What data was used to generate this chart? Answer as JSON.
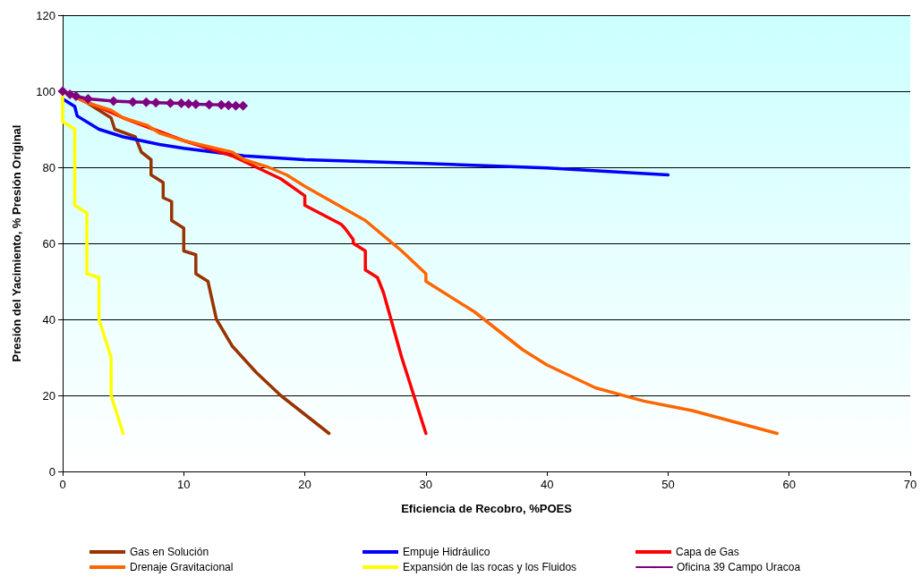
{
  "chart_data": {
    "type": "line",
    "xlabel": "Eficiencia de Recobro, %POES",
    "ylabel": "Presión del Yacimiento, % Presión Original",
    "xlim": [
      0,
      70
    ],
    "xticks": [
      0,
      10,
      20,
      30,
      40,
      50,
      60,
      70
    ],
    "ylim": [
      0,
      120
    ],
    "yticks": [
      0,
      20,
      40,
      60,
      80,
      100,
      120
    ],
    "grid": "y",
    "legend": "bottom",
    "line_style": "solid",
    "series": [
      {
        "name": "Gas en Solución",
        "color": "#993300",
        "marker": "none",
        "x": [
          0,
          2,
          4,
          4.3,
          6,
          6.5,
          7.3,
          7.3,
          8.3,
          8.3,
          9,
          9,
          10,
          10,
          11,
          11,
          12,
          12.7,
          14,
          16,
          18,
          20,
          22
        ],
        "values": [
          100,
          97,
          93,
          90,
          88,
          84,
          82,
          78,
          76,
          72,
          71,
          66,
          64,
          58,
          57,
          52,
          50,
          40,
          33,
          26,
          20,
          15,
          10
        ]
      },
      {
        "name": "Empuje Hidráulico",
        "color": "#0000ff",
        "marker": "none",
        "x": [
          0,
          1,
          1.2,
          3,
          5,
          8,
          10,
          15,
          20,
          30,
          40,
          50
        ],
        "values": [
          98,
          96,
          93.5,
          90,
          88,
          86,
          85,
          83,
          82,
          81,
          79.8,
          78
        ]
      },
      {
        "name": "Capa de Gas",
        "color": "#ff0000",
        "marker": "none",
        "x": [
          0,
          5,
          10,
          14,
          16,
          18,
          20,
          20,
          23,
          23.3,
          24,
          24,
          25,
          25,
          26,
          26.5,
          28,
          30
        ],
        "values": [
          100,
          93,
          87,
          83,
          80,
          77,
          72.5,
          70,
          65,
          64,
          61,
          60,
          58,
          53,
          51,
          47,
          30,
          10
        ]
      },
      {
        "name": "Drenaje Gravitacional",
        "color": "#ff6600",
        "marker": "none",
        "x": [
          0,
          2,
          4,
          5,
          7,
          8,
          10,
          12,
          14,
          15,
          17,
          18.5,
          20,
          25,
          28,
          29,
          30,
          30,
          34,
          36,
          38,
          40,
          44,
          48,
          52,
          59
        ],
        "values": [
          100,
          97,
          95,
          93,
          91,
          89,
          87,
          85.5,
          84,
          82,
          80,
          78,
          75,
          66,
          58,
          55,
          52,
          50,
          42,
          37,
          32,
          28,
          22,
          18.5,
          16,
          10
        ]
      },
      {
        "name": "Expansión de las rocas y los Fluidos",
        "color": "#ffff00",
        "marker": "none",
        "x": [
          0,
          0,
          1,
          1,
          2,
          2,
          3,
          3,
          4,
          4,
          5
        ],
        "values": [
          100,
          92,
          90,
          70,
          68,
          52,
          51,
          40,
          30,
          20,
          10
        ]
      },
      {
        "name": "Oficina 39 Campo Uracoa",
        "color": "#800080",
        "marker": "diamond",
        "x": [
          0,
          0.6,
          1.1,
          2.1,
          4.2,
          5.8,
          6.9,
          7.7,
          8.9,
          9.8,
          10.4,
          11,
          12.1,
          13.1,
          13.7,
          14.3,
          14.9
        ],
        "values": [
          100,
          99.2,
          98.7,
          98,
          97.4,
          97.2,
          97.1,
          97,
          96.9,
          96.8,
          96.7,
          96.6,
          96.5,
          96.4,
          96.3,
          96.2,
          96.2
        ]
      }
    ]
  }
}
